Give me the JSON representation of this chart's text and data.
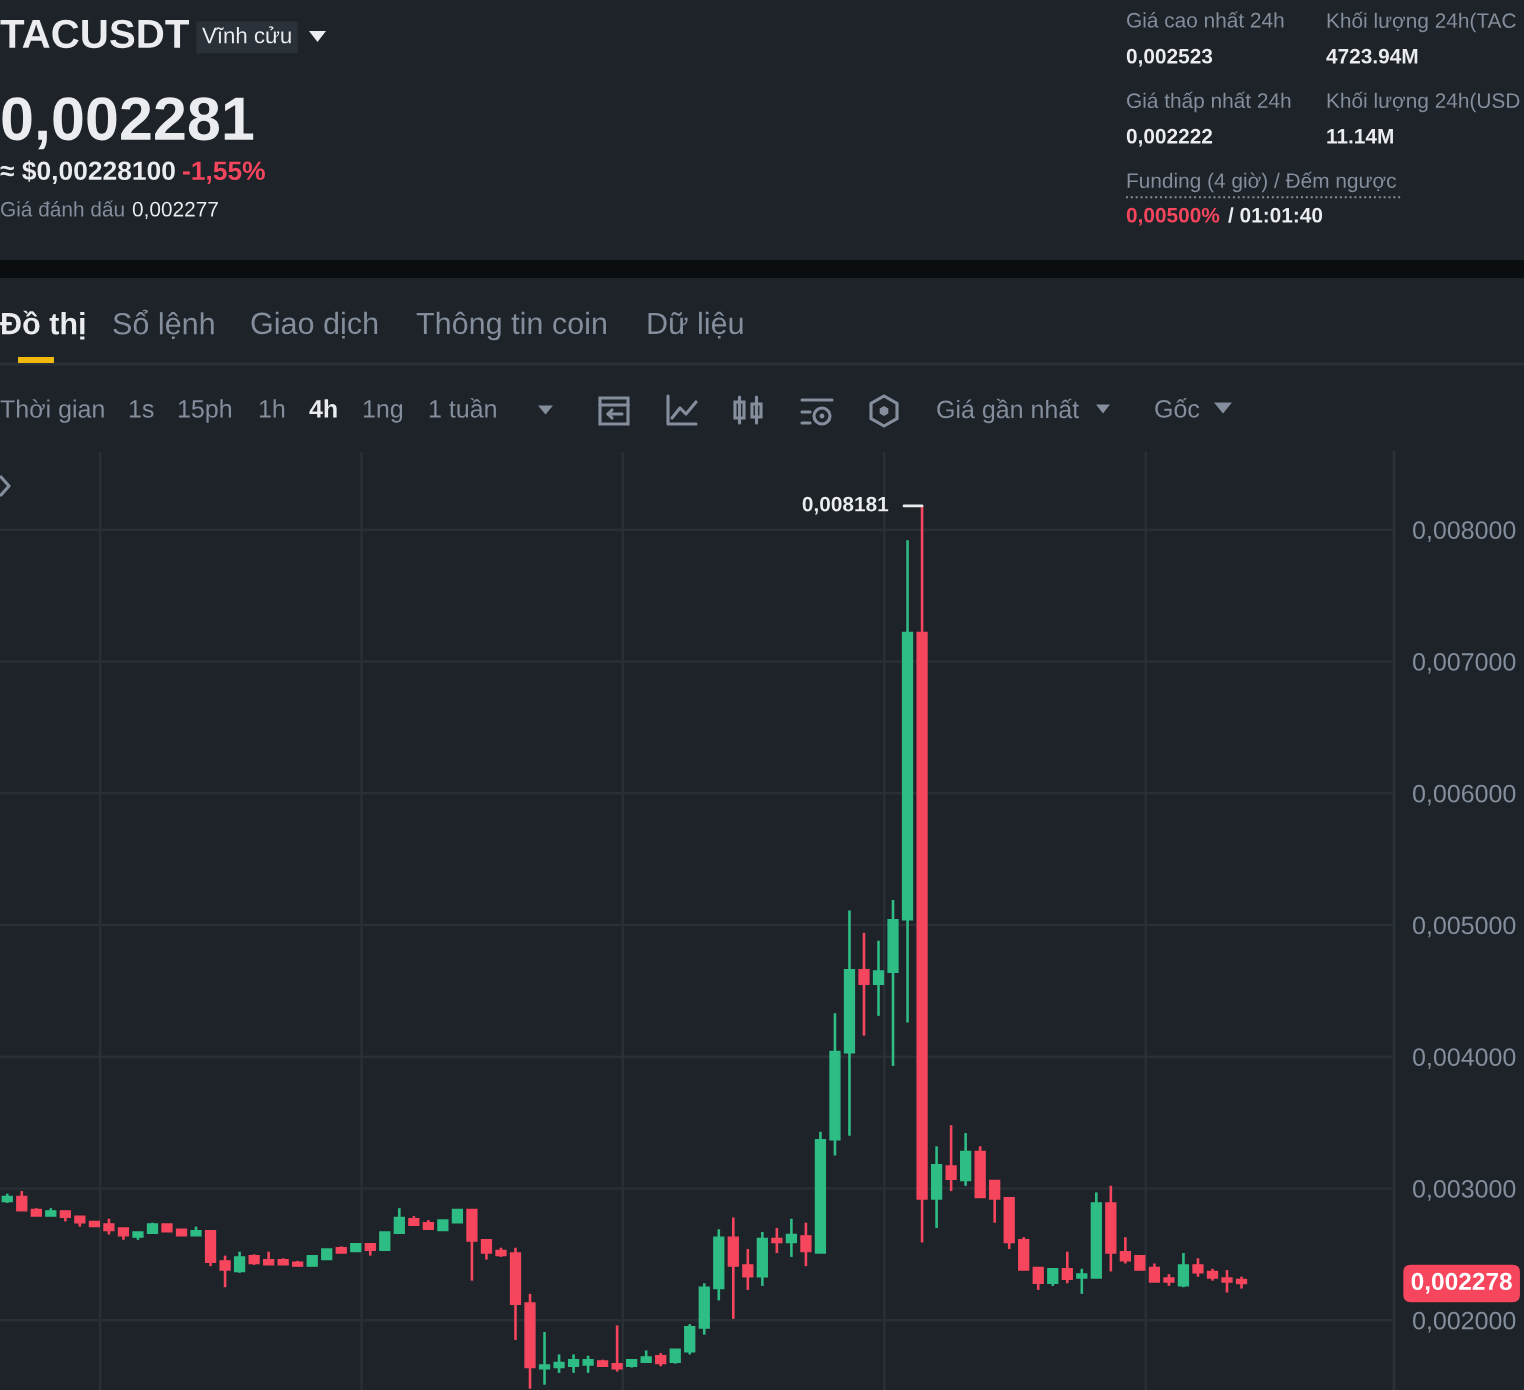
{
  "chart_data": {
    "type": "candlestick",
    "title": "TACUSDT",
    "annotations": [
      "Vĩnh cửu",
      "0,002281",
      "≈ $0,00228100",
      "-1,55%",
      "Giá đánh dấu",
      "0,002277",
      "Giá cao nhất 24h",
      "0,002523",
      "Khối lượng 24h(TAC",
      "4723.94M",
      "Giá thấp nhất 24h",
      "0,002222",
      "Khối lượng 24h(USD",
      "11.14M",
      "Funding (4 giờ) / Đếm ngược",
      "0,00500%",
      "/ 01:01:40",
      "Đồ thị",
      "Sổ lệnh",
      "Giao dịch",
      "Thông tin coin",
      "Dữ liệu",
      "Thời gian",
      "1s",
      "15ph",
      "1h",
      "4h",
      "1ng",
      "1 tuần",
      "Giá gần nhất",
      "Gốc",
      "0,008181",
      "0,002278"
    ],
    "categories": [
      null,
      null,
      null,
      null,
      null,
      null,
      null,
      null,
      null,
      null,
      null,
      null,
      null,
      null,
      null,
      null,
      null,
      null,
      null,
      null,
      null,
      null,
      null,
      null,
      null,
      null,
      null,
      null,
      null,
      null,
      null,
      null,
      null,
      null,
      null,
      null,
      null,
      null,
      null,
      null,
      null,
      null,
      null,
      null,
      null,
      null,
      null,
      null,
      null,
      null,
      null,
      null,
      null,
      null,
      null,
      null,
      null,
      null,
      null,
      null,
      null,
      null,
      null,
      null,
      null,
      null,
      null,
      null,
      null,
      null,
      null,
      null,
      null,
      null,
      null,
      null,
      null,
      null,
      null,
      null,
      null,
      null,
      null,
      null,
      null,
      null,
      null,
      null,
      null,
      null,
      null,
      null,
      null,
      null,
      null,
      null
    ],
    "ohlc": [
      [
        0.0029,
        0.00296,
        0.00289,
        0.00294
      ],
      [
        0.00294,
        0.00298,
        0.00283,
        0.00283
      ],
      [
        0.00284,
        0.00285,
        0.00279,
        0.00279
      ],
      [
        0.00279,
        0.00285,
        0.00279,
        0.00283
      ],
      [
        0.00283,
        0.00283,
        0.00275,
        0.00278
      ],
      [
        0.00279,
        0.00279,
        0.00271,
        0.00274
      ],
      [
        0.00275,
        0.00275,
        0.00271,
        0.00271
      ],
      [
        0.00273,
        0.00277,
        0.00265,
        0.00268
      ],
      [
        0.0027,
        0.0027,
        0.00261,
        0.00264
      ],
      [
        0.00263,
        0.00267,
        0.00261,
        0.00267
      ],
      [
        0.00266,
        0.00274,
        0.00266,
        0.00273
      ],
      [
        0.00273,
        0.00273,
        0.00267,
        0.00267
      ],
      [
        0.00269,
        0.00269,
        0.00264,
        0.00264
      ],
      [
        0.00264,
        0.00271,
        0.00264,
        0.00268
      ],
      [
        0.00268,
        0.00268,
        0.00241,
        0.00244
      ],
      [
        0.00245,
        0.00249,
        0.00225,
        0.00238
      ],
      [
        0.00237,
        0.00252,
        0.00236,
        0.00248
      ],
      [
        0.00249,
        0.0025,
        0.00242,
        0.00243
      ],
      [
        0.00246,
        0.00252,
        0.00242,
        0.00242
      ],
      [
        0.00246,
        0.00247,
        0.00242,
        0.00242
      ],
      [
        0.00244,
        0.00245,
        0.00241,
        0.00241
      ],
      [
        0.00241,
        0.00249,
        0.00241,
        0.00249
      ],
      [
        0.00246,
        0.00254,
        0.00246,
        0.00254
      ],
      [
        0.00255,
        0.00256,
        0.00251,
        0.00251
      ],
      [
        0.00252,
        0.00258,
        0.00252,
        0.00258
      ],
      [
        0.00258,
        0.00258,
        0.00249,
        0.00253
      ],
      [
        0.00253,
        0.00267,
        0.00253,
        0.00267
      ],
      [
        0.00266,
        0.00285,
        0.00266,
        0.00278
      ],
      [
        0.00277,
        0.00279,
        0.00272,
        0.00272
      ],
      [
        0.00274,
        0.00276,
        0.00269,
        0.00269
      ],
      [
        0.00268,
        0.00276,
        0.00268,
        0.00276
      ],
      [
        0.00274,
        0.00284,
        0.00274,
        0.00284
      ],
      [
        0.00284,
        0.00284,
        0.0023,
        0.0026
      ],
      [
        0.00261,
        0.00261,
        0.00246,
        0.00251
      ],
      [
        0.00253,
        0.00255,
        0.00248,
        0.00249
      ],
      [
        0.00251,
        0.00255,
        0.00185,
        0.00212
      ],
      [
        0.00213,
        0.0022,
        0.00148,
        0.00164
      ],
      [
        0.00163,
        0.00191,
        0.00151,
        0.00166
      ],
      [
        0.00164,
        0.00174,
        0.0016,
        0.00168
      ],
      [
        0.00165,
        0.00174,
        0.0016,
        0.0017
      ],
      [
        0.00166,
        0.00173,
        0.0016,
        0.0017
      ],
      [
        0.00169,
        0.0017,
        0.00165,
        0.00165
      ],
      [
        0.00167,
        0.00196,
        0.00161,
        0.00163
      ],
      [
        0.00165,
        0.0017,
        0.00164,
        0.0017
      ],
      [
        0.00168,
        0.00177,
        0.00168,
        0.00172
      ],
      [
        0.00173,
        0.00175,
        0.00165,
        0.00167
      ],
      [
        0.00168,
        0.00178,
        0.00167,
        0.00178
      ],
      [
        0.00176,
        0.00197,
        0.00174,
        0.00195
      ],
      [
        0.00194,
        0.00228,
        0.00189,
        0.00225
      ],
      [
        0.00224,
        0.00269,
        0.00215,
        0.00263
      ],
      [
        0.00263,
        0.00278,
        0.00201,
        0.00241
      ],
      [
        0.00242,
        0.00254,
        0.00223,
        0.00233
      ],
      [
        0.00233,
        0.00267,
        0.00226,
        0.00262
      ],
      [
        0.00262,
        0.0027,
        0.00251,
        0.00259
      ],
      [
        0.00259,
        0.00277,
        0.00248,
        0.00265
      ],
      [
        0.00264,
        0.00274,
        0.00241,
        0.00252
      ],
      [
        0.00251,
        0.00343,
        0.00251,
        0.00337
      ],
      [
        0.00337,
        0.00433,
        0.00325,
        0.00404
      ],
      [
        0.00403,
        0.00511,
        0.0034,
        0.00466
      ],
      [
        0.00466,
        0.00494,
        0.00416,
        0.00455
      ],
      [
        0.00455,
        0.00488,
        0.00431,
        0.00465
      ],
      [
        0.00464,
        0.00519,
        0.00393,
        0.00504
      ],
      [
        0.00504,
        0.00792,
        0.00426,
        0.00722
      ],
      [
        0.00722,
        0.008181,
        0.00259,
        0.00292
      ],
      [
        0.00292,
        0.00332,
        0.0027,
        0.00318
      ],
      [
        0.00317,
        0.00348,
        0.00298,
        0.00307
      ],
      [
        0.00306,
        0.00342,
        0.00302,
        0.00328
      ],
      [
        0.00328,
        0.00332,
        0.00293,
        0.00293
      ],
      [
        0.00306,
        0.00306,
        0.00274,
        0.00292
      ],
      [
        0.00293,
        0.00293,
        0.00254,
        0.00259
      ],
      [
        0.00261,
        0.00263,
        0.00238,
        0.00238
      ],
      [
        0.0024,
        0.0024,
        0.00223,
        0.00228
      ],
      [
        0.00228,
        0.00239,
        0.00226,
        0.00239
      ],
      [
        0.00239,
        0.00252,
        0.00228,
        0.00231
      ],
      [
        0.00232,
        0.00239,
        0.0022,
        0.00235
      ],
      [
        0.00232,
        0.00297,
        0.00232,
        0.00289
      ],
      [
        0.00289,
        0.00302,
        0.00237,
        0.00251
      ],
      [
        0.00252,
        0.00263,
        0.00243,
        0.00245
      ],
      [
        0.00249,
        0.00249,
        0.00238,
        0.00238
      ],
      [
        0.0024,
        0.00243,
        0.00229,
        0.00229
      ],
      [
        0.00232,
        0.00235,
        0.00226,
        0.00229
      ],
      [
        0.00226,
        0.00251,
        0.00225,
        0.00242
      ],
      [
        0.00242,
        0.00247,
        0.00233,
        0.00236
      ],
      [
        0.00237,
        0.00239,
        0.0023,
        0.00232
      ],
      [
        0.00232,
        0.00238,
        0.00221,
        0.00229
      ],
      [
        0.00231,
        0.00233,
        0.00224,
        0.002278
      ],
      null,
      null,
      null,
      null,
      null,
      null,
      null,
      null,
      null,
      null
    ],
    "colors": [
      "#2ebd85",
      "#f6465d",
      "#f6465d",
      "#2ebd85",
      "#f6465d",
      "#f6465d",
      "#f6465d",
      "#f6465d",
      "#f6465d",
      "#2ebd85",
      "#2ebd85",
      "#f6465d",
      "#f6465d",
      "#2ebd85",
      "#f6465d",
      "#f6465d",
      "#2ebd85",
      "#f6465d",
      "#f6465d",
      "#f6465d",
      "#f6465d",
      "#2ebd85",
      "#2ebd85",
      "#f6465d",
      "#2ebd85",
      "#f6465d",
      "#2ebd85",
      "#2ebd85",
      "#f6465d",
      "#f6465d",
      "#2ebd85",
      "#2ebd85",
      "#f6465d",
      "#f6465d",
      "#f6465d",
      "#f6465d",
      "#f6465d",
      "#2ebd85",
      "#2ebd85",
      "#2ebd85",
      "#2ebd85",
      "#f6465d",
      "#f6465d",
      "#2ebd85",
      "#2ebd85",
      "#f6465d",
      "#2ebd85",
      "#2ebd85",
      "#2ebd85",
      "#2ebd85",
      "#f6465d",
      "#f6465d",
      "#2ebd85",
      "#f6465d",
      "#2ebd85",
      "#f6465d",
      "#2ebd85",
      "#2ebd85",
      "#2ebd85",
      "#f6465d",
      "#2ebd85",
      "#2ebd85",
      "#2ebd85",
      "#f6465d",
      "#2ebd85",
      "#f6465d",
      "#2ebd85",
      "#f6465d",
      "#f6465d",
      "#f6465d",
      "#f6465d",
      "#f6465d",
      "#2ebd85",
      "#f6465d",
      "#2ebd85",
      "#2ebd85",
      "#f6465d",
      "#f6465d",
      "#f6465d",
      "#f6465d",
      "#f6465d",
      "#2ebd85",
      "#f6465d",
      "#f6465d",
      "#f6465d",
      "#f6465d",
      null,
      null,
      null,
      null,
      null,
      null,
      null,
      null,
      null,
      null
    ],
    "ylim": [
      0.00147,
      0.00859
    ],
    "yticks": [
      {
        "value": 0.002,
        "label": "0,002000"
      },
      {
        "value": 0.003,
        "label": "0,003000"
      },
      {
        "value": 0.004,
        "label": "0,004000"
      },
      {
        "value": 0.005,
        "label": "0,005000"
      },
      {
        "value": 0.006,
        "label": "0,006000"
      },
      {
        "value": 0.007,
        "label": "0,007000"
      },
      {
        "value": 0.008,
        "label": "0,008000"
      }
    ],
    "grid": true,
    "tick_labels": "y"
  }
}
